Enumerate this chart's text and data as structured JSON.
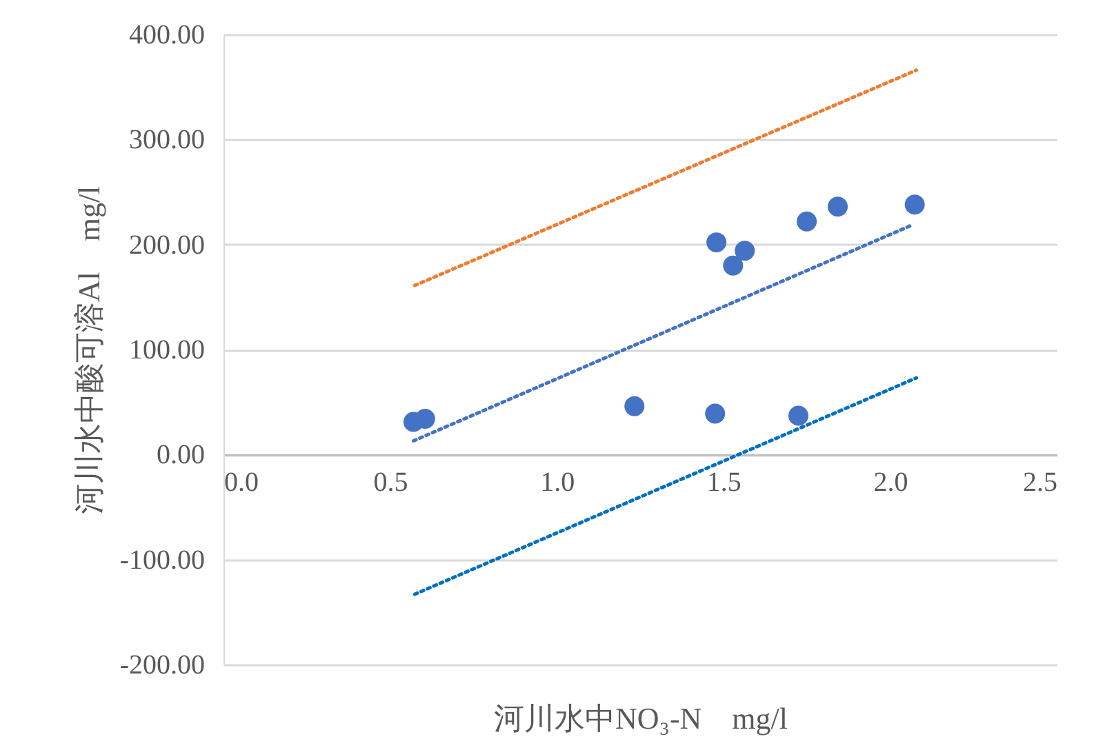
{
  "chart_data": {
    "type": "scatter",
    "xlabel": "河川水中NO₃-N　mg/l",
    "ylabel": "河川水中酸可溶Al　mg/l",
    "xlim": [
      0,
      2.5
    ],
    "xticks": [
      {
        "value": 0,
        "label": "0.0"
      },
      {
        "value": 0.5,
        "label": "0.5"
      },
      {
        "value": 1,
        "label": "1.0"
      },
      {
        "value": 1.5,
        "label": "1.5"
      },
      {
        "value": 2,
        "label": "2.0"
      },
      {
        "value": 2.5,
        "label": "2.5"
      }
    ],
    "ylim": [
      -200,
      400
    ],
    "yticks": [
      {
        "value": -200,
        "label": "-200.00"
      },
      {
        "value": -100,
        "label": "-100.00"
      },
      {
        "value": 0,
        "label": "0.00"
      },
      {
        "value": 100,
        "label": "100.00"
      },
      {
        "value": 200,
        "label": "200.00"
      },
      {
        "value": 300,
        "label": "300.00"
      },
      {
        "value": 400,
        "label": "400.00"
      }
    ],
    "grid": "y",
    "series": [
      {
        "marker": "circle",
        "color": "#4472c4",
        "x": [
          0.57,
          0.605,
          1.233,
          1.475,
          1.479,
          1.529,
          1.564,
          1.725,
          1.75,
          1.843,
          2.074
        ],
        "values": [
          31,
          34,
          46,
          39,
          202,
          180,
          194,
          37,
          222,
          236,
          238
        ]
      },
      {
        "type": "line",
        "line_style": "dotted",
        "color": "#4472c4",
        "x": [
          0.57,
          2.062
        ],
        "values": [
          13,
          218
        ]
      },
      {
        "type": "line",
        "line_style": "dotted",
        "color": "#ed7d31",
        "x": [
          0.574,
          2.079
        ],
        "values": [
          161,
          366
        ]
      },
      {
        "type": "line",
        "line_style": "dotted",
        "color": "#0070c0",
        "x": [
          0.574,
          2.079
        ],
        "values": [
          -133,
          73
        ]
      }
    ]
  }
}
